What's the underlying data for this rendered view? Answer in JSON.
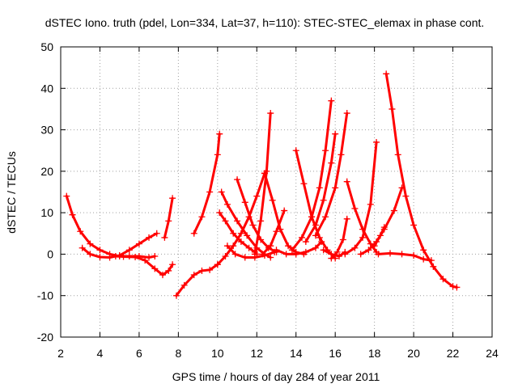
{
  "chart_data": {
    "type": "scatter",
    "title": "dSTEC Iono. truth (pdel, Lon=334, Lat=37, h=110): STEC-STEC_elemax in phase cont.",
    "xlabel": "GPS time / hours of day 284 of year 2011",
    "ylabel": "dSTEC  / TECUs",
    "xlim": [
      2,
      24
    ],
    "ylim": [
      -20,
      50
    ],
    "xticks": [
      2,
      4,
      6,
      8,
      10,
      12,
      14,
      16,
      18,
      20,
      22,
      24
    ],
    "yticks": [
      -20,
      -10,
      0,
      10,
      20,
      30,
      40,
      50
    ],
    "grid": true,
    "marker": "plus",
    "color": "#ff0000",
    "series": [
      {
        "x": [
          2.3,
          2.6,
          3.0,
          3.5,
          4.0,
          4.5,
          5.0,
          5.5,
          6.0,
          6.5,
          6.8
        ],
        "y": [
          14,
          9.5,
          5.5,
          2.5,
          1.0,
          0.0,
          -0.5,
          -0.5,
          -0.5,
          -0.8,
          -0.5
        ]
      },
      {
        "x": [
          3.1,
          3.5,
          4.0,
          4.5,
          5.0,
          5.5,
          6.0,
          6.5,
          6.9
        ],
        "y": [
          1.5,
          0.0,
          -0.7,
          -0.8,
          -0.3,
          1.0,
          2.5,
          4.0,
          5.0
        ]
      },
      {
        "x": [
          4.8,
          5.2,
          5.8,
          6.3,
          6.8,
          7.2,
          7.5,
          7.7
        ],
        "y": [
          -0.5,
          -0.6,
          -0.7,
          -1.5,
          -3.5,
          -5.0,
          -4.0,
          -2.5
        ]
      },
      {
        "x": [
          7.3,
          7.5,
          7.7
        ],
        "y": [
          4.0,
          8.0,
          13.5
        ]
      },
      {
        "x": [
          7.9,
          8.3,
          8.8,
          9.2,
          9.6,
          10.0
        ],
        "y": [
          -10.0,
          -7.5,
          -5.0,
          -4.0,
          -3.8,
          -2.5
        ]
      },
      {
        "x": [
          8.8,
          9.2,
          9.6,
          10.0,
          10.1
        ],
        "y": [
          5.0,
          9.0,
          15.0,
          24.0,
          29.0
        ]
      },
      {
        "x": [
          10.0,
          10.4,
          10.8,
          11.2,
          11.6,
          12.0,
          12.4
        ],
        "y": [
          -2.5,
          -0.5,
          2.0,
          5.0,
          9.0,
          14.0,
          19.5
        ]
      },
      {
        "x": [
          10.1,
          10.4,
          10.8,
          11.2,
          11.6,
          11.9,
          12.0
        ],
        "y": [
          10.0,
          8.0,
          5.0,
          3.0,
          1.5,
          0.5,
          0.0
        ]
      },
      {
        "x": [
          10.2,
          10.5,
          11.0,
          11.5,
          12.0,
          12.4,
          12.7
        ],
        "y": [
          15.0,
          12.0,
          8.0,
          4.5,
          1.5,
          0.0,
          -0.8
        ]
      },
      {
        "x": [
          10.5,
          10.9,
          11.4,
          11.9,
          12.4,
          12.9
        ],
        "y": [
          2.0,
          0.0,
          -0.8,
          -0.8,
          -0.3,
          0.5
        ]
      },
      {
        "x": [
          11.0,
          11.4,
          11.8,
          12.2,
          12.6,
          13.0
        ],
        "y": [
          18.0,
          12.5,
          7.0,
          3.5,
          1.5,
          0.5
        ]
      },
      {
        "x": [
          12.4,
          12.8,
          13.2,
          13.6,
          14.0,
          14.4
        ],
        "y": [
          19.5,
          13.0,
          6.0,
          2.0,
          0.5,
          0.0
        ]
      },
      {
        "x": [
          11.9,
          12.2,
          12.5,
          12.7
        ],
        "y": [
          0.0,
          8.0,
          20.0,
          34.0
        ]
      },
      {
        "x": [
          12.3,
          12.7,
          13.0,
          13.4
        ],
        "y": [
          0.0,
          2.0,
          5.5,
          10.5
        ]
      },
      {
        "x": [
          13.0,
          13.5,
          14.0,
          14.5,
          15.0,
          15.3
        ],
        "y": [
          1.0,
          0.0,
          0.0,
          0.5,
          1.5,
          3.0
        ]
      },
      {
        "x": [
          14.0,
          14.4,
          14.8,
          15.2,
          15.6,
          16.0
        ],
        "y": [
          25.0,
          17.0,
          9.0,
          4.0,
          1.0,
          -1.0
        ]
      },
      {
        "x": [
          13.8,
          14.3,
          14.8,
          15.2,
          15.5,
          15.8
        ],
        "y": [
          1.0,
          4.0,
          9.0,
          16.0,
          25.0,
          37.0
        ]
      },
      {
        "x": [
          14.5,
          15.0,
          15.4,
          15.8,
          16.0
        ],
        "y": [
          3.0,
          7.0,
          13.0,
          22.0,
          29.0
        ]
      },
      {
        "x": [
          15.0,
          15.5,
          16.0,
          16.3,
          16.6
        ],
        "y": [
          4.5,
          9.0,
          16.0,
          24.0,
          34.0
        ]
      },
      {
        "x": [
          15.4,
          15.8,
          16.2,
          16.5
        ],
        "y": [
          1.0,
          0.0,
          -0.5,
          0.5
        ]
      },
      {
        "x": [
          15.8,
          16.1,
          16.4,
          16.6
        ],
        "y": [
          -1.0,
          0.5,
          3.5,
          8.5
        ]
      },
      {
        "x": [
          16.6,
          17.0,
          17.4,
          17.8,
          18.1
        ],
        "y": [
          17.5,
          11.0,
          6.0,
          2.5,
          0.5
        ]
      },
      {
        "x": [
          16.5,
          17.0,
          17.4,
          17.8,
          18.1
        ],
        "y": [
          0.0,
          1.5,
          4.0,
          12.0,
          27.0
        ]
      },
      {
        "x": [
          17.3,
          17.7,
          18.1,
          18.5,
          19.0,
          19.4
        ],
        "y": [
          0.0,
          1.0,
          3.0,
          6.0,
          10.5,
          16.0
        ]
      },
      {
        "x": [
          18.0,
          18.3,
          18.5
        ],
        "y": [
          2.0,
          4.5,
          6.5
        ]
      },
      {
        "x": [
          18.2,
          18.8,
          19.4,
          20.0,
          20.5,
          20.9
        ],
        "y": [
          0.0,
          0.2,
          0.0,
          -0.3,
          -1.2,
          -1.5
        ]
      },
      {
        "x": [
          18.6,
          18.9,
          19.2,
          19.6,
          20.0,
          20.5,
          21.0,
          21.5,
          22.0,
          22.2
        ],
        "y": [
          43.5,
          35.0,
          24.0,
          14.0,
          7.0,
          1.0,
          -3.0,
          -6.0,
          -7.8,
          -8.0
        ]
      }
    ]
  }
}
